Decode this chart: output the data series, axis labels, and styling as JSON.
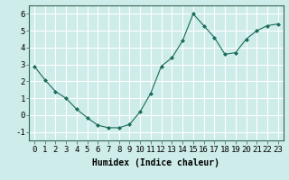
{
  "x": [
    0,
    1,
    2,
    3,
    4,
    5,
    6,
    7,
    8,
    9,
    10,
    11,
    12,
    13,
    14,
    15,
    16,
    17,
    18,
    19,
    20,
    21,
    22,
    23
  ],
  "y": [
    2.9,
    2.1,
    1.4,
    1.0,
    0.35,
    -0.15,
    -0.6,
    -0.75,
    -0.75,
    -0.55,
    0.2,
    1.3,
    2.9,
    3.4,
    4.4,
    6.0,
    5.3,
    4.6,
    3.6,
    3.7,
    4.5,
    5.0,
    5.3,
    5.4
  ],
  "xlabel": "Humidex (Indice chaleur)",
  "ylim": [
    -1.5,
    6.5
  ],
  "xlim": [
    -0.5,
    23.5
  ],
  "yticks": [
    -1,
    0,
    1,
    2,
    3,
    4,
    5,
    6
  ],
  "xticks": [
    0,
    1,
    2,
    3,
    4,
    5,
    6,
    7,
    8,
    9,
    10,
    11,
    12,
    13,
    14,
    15,
    16,
    17,
    18,
    19,
    20,
    21,
    22,
    23
  ],
  "line_color": "#1a6b5a",
  "marker_color": "#1a6b5a",
  "bg_color": "#ceecea",
  "grid_color": "#ffffff",
  "xlabel_fontsize": 7,
  "tick_fontsize": 6.5
}
